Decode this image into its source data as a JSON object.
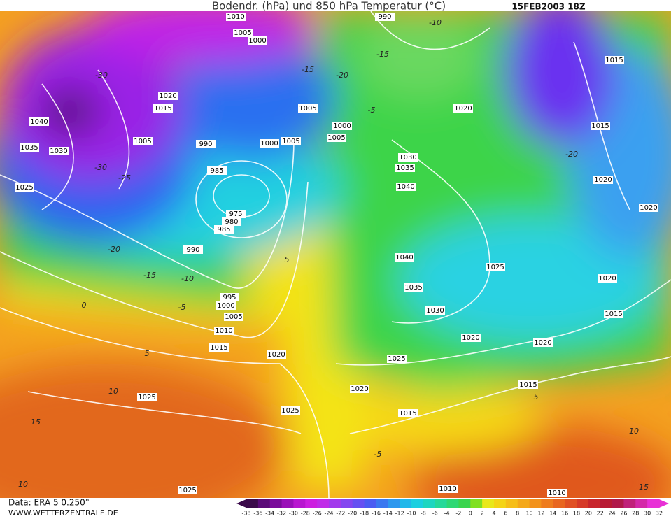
{
  "header": {
    "title": "Bodendr. (hPa) und 850 hPa Temperatur (°C)",
    "date": "15FEB2003 18Z"
  },
  "footer": {
    "source": "Data: ERA 5 0.250°",
    "site": "WWW.WETTERZENTRALE.DE"
  },
  "colorbar": {
    "ticks": [
      -38,
      -36,
      -34,
      -32,
      -30,
      -28,
      -26,
      -24,
      -22,
      -20,
      -18,
      -16,
      -14,
      -12,
      -10,
      -8,
      -6,
      -4,
      -2,
      0,
      2,
      4,
      6,
      8,
      10,
      12,
      14,
      16,
      18,
      20,
      22,
      24,
      26,
      28,
      30,
      32
    ],
    "colors": [
      "#3a0a4a",
      "#5a0a78",
      "#7a0c9a",
      "#9a10b8",
      "#b817d0",
      "#cc1fe0",
      "#c02ce8",
      "#a23aec",
      "#8446f0",
      "#6650f2",
      "#4a5cf2",
      "#3a78f0",
      "#2e98ee",
      "#22b8ea",
      "#1ccfe0",
      "#1ed6c0",
      "#26d99a",
      "#2ed874",
      "#3ad44e",
      "#80e020",
      "#e8e81a",
      "#f4d416",
      "#f6be18",
      "#f4a81a",
      "#f2921c",
      "#ee7c1e",
      "#e86620",
      "#e05024",
      "#d63a28",
      "#c8262c",
      "#b81a34",
      "#b0184a",
      "#c0207a",
      "#d428a8",
      "#e830d6"
    ]
  },
  "isobar_labels": [
    1010,
    1005,
    1000,
    990,
    1020,
    1015,
    1040,
    1035,
    1030,
    1005,
    1005,
    1000,
    1005,
    1000,
    1005,
    990,
    985,
    975,
    980,
    985,
    990,
    1025,
    1020,
    1015,
    1015,
    1030,
    1035,
    1040,
    1020,
    1020,
    1040,
    1025,
    1035,
    1020,
    1030,
    1015,
    995,
    1000,
    1005,
    1010,
    1015,
    1020,
    1020,
    1020,
    1025,
    1020,
    1015,
    1015,
    1025,
    1025,
    1010,
    1010,
    1025
  ],
  "temperature_labels": [
    -30,
    -15,
    -20,
    -5,
    -10,
    -15,
    -20,
    -30,
    -25,
    -20,
    -15,
    -10,
    -5,
    0,
    5,
    -5,
    10,
    15,
    10,
    5,
    10,
    15,
    5
  ]
}
